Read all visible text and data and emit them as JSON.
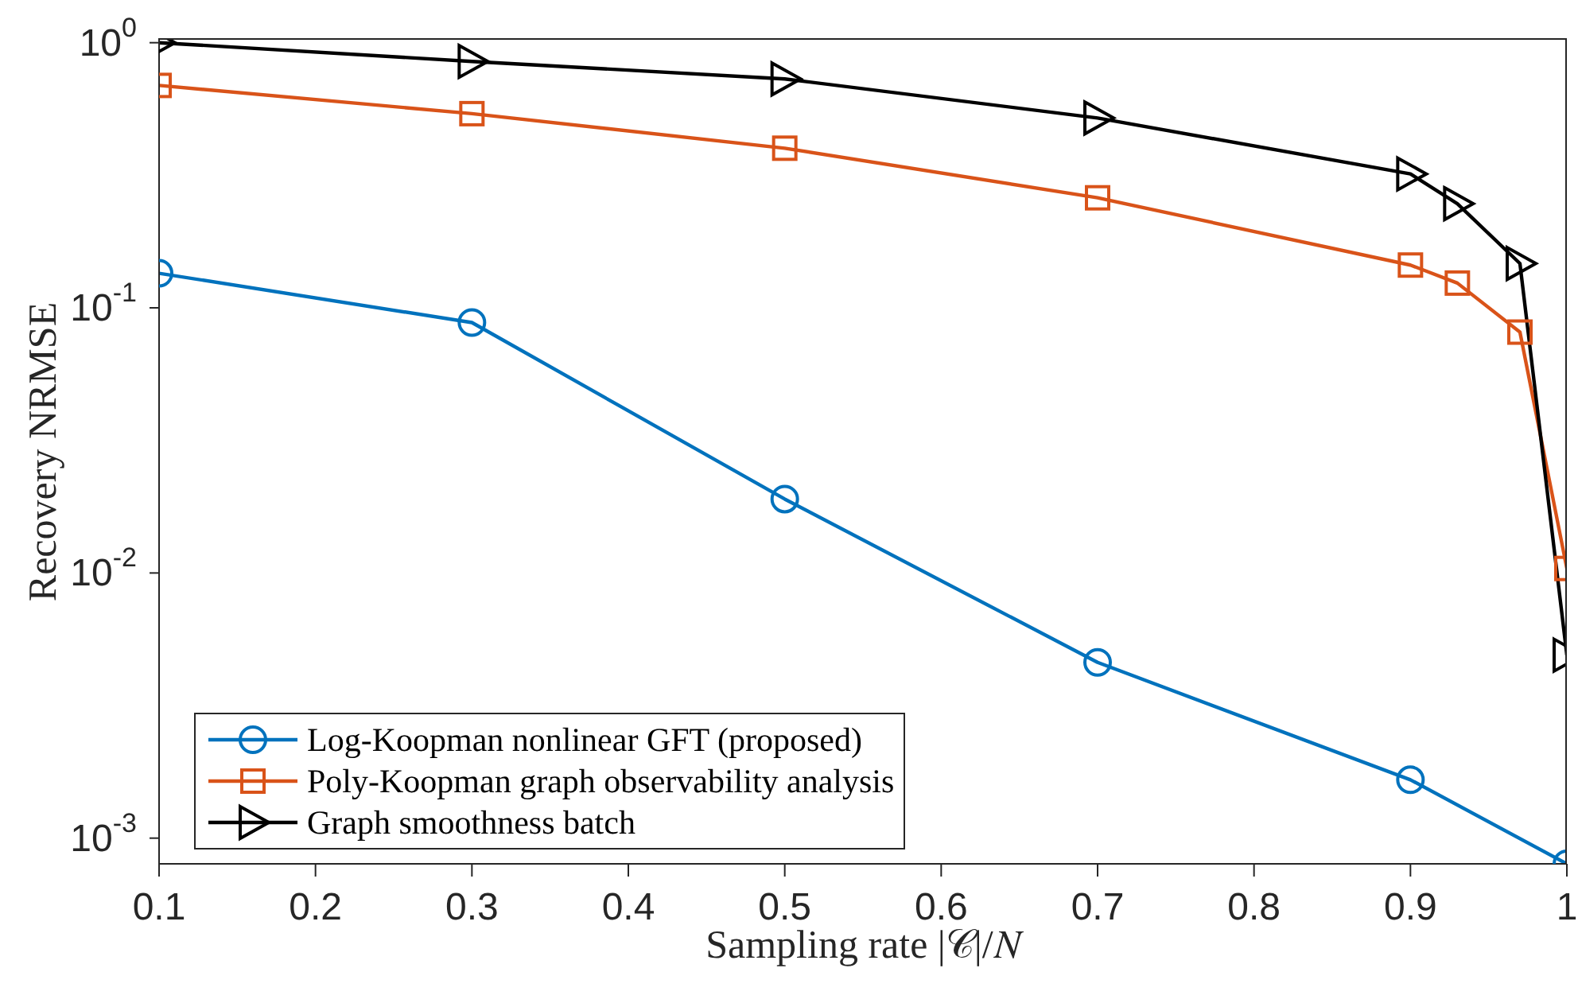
{
  "chart_data": {
    "type": "line",
    "xlabel": "Sampling rate |𝒞|/𝑁",
    "ylabel": "Recovery NRMSE",
    "series": [
      {
        "name": "Log-Koopman nonlinear GFT (proposed)",
        "color": "#0072bd",
        "marker": "circle",
        "x": [
          0.1,
          0.3,
          0.5,
          0.7,
          0.9,
          1.0
        ],
        "values": [
          0.135,
          0.088,
          0.019,
          0.0046,
          0.00166,
          0.0008
        ]
      },
      {
        "name": "Poly-Koopman graph observability analysis",
        "color": "#d95319",
        "marker": "square",
        "x": [
          0.1,
          0.3,
          0.5,
          0.7,
          0.9,
          0.93,
          0.97,
          1.0
        ],
        "values": [
          0.69,
          0.54,
          0.4,
          0.26,
          0.145,
          0.124,
          0.081,
          0.0104
        ]
      },
      {
        "name": "Graph smoothness batch",
        "color": "#000000",
        "marker": "triangle",
        "x": [
          0.1,
          0.3,
          0.5,
          0.7,
          0.9,
          0.93,
          0.97,
          1.0
        ],
        "values": [
          1.0,
          0.85,
          0.73,
          0.52,
          0.32,
          0.247,
          0.147,
          0.0049
        ]
      }
    ],
    "log": "y",
    "xlim": [
      0.1,
      1
    ],
    "xticks": [
      0.1,
      0.2,
      0.3,
      0.4,
      0.5,
      0.6,
      0.7,
      0.8,
      0.9,
      1
    ],
    "ylim": [
      0.0008,
      1.04
    ],
    "yticks": [
      {
        "value": 1,
        "label": "10$^{0}$"
      },
      {
        "value": 0.1,
        "label": "10$^{-1}$"
      },
      {
        "value": 0.01,
        "label": "10$^{-2}$"
      },
      {
        "value": 0.001,
        "label": "10$^{-3}$"
      }
    ],
    "legend": "bottom left",
    "line_style": "solid"
  }
}
